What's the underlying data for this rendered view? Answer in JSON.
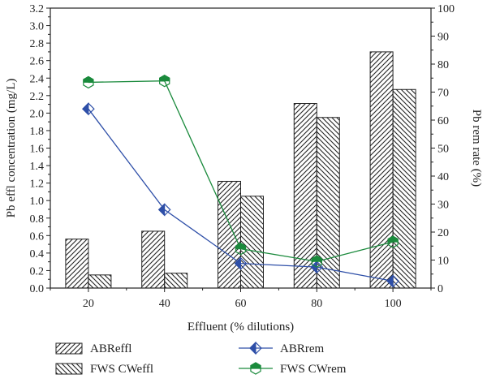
{
  "chart_data": {
    "type": "bar+line",
    "categories": [
      "20",
      "40",
      "60",
      "80",
      "100"
    ],
    "xlabel": "Effluent (% dilutions)",
    "ylabel_left": "Pb effl concentration (mg/L)",
    "ylabel_right": "Pb rem rate (%)",
    "ylim_left": [
      0,
      3.2
    ],
    "ylim_right": [
      0,
      100
    ],
    "yticks_left": [
      "0.0",
      "0.2",
      "0.4",
      "0.6",
      "0.8",
      "1.0",
      "1.2",
      "1.4",
      "1.6",
      "1.8",
      "2.0",
      "2.2",
      "2.4",
      "2.6",
      "2.8",
      "3.0",
      "3.2"
    ],
    "yticks_right": [
      "0",
      "10",
      "20",
      "30",
      "40",
      "50",
      "60",
      "70",
      "80",
      "90",
      "100"
    ],
    "grid": false,
    "legend_position": "bottom",
    "bar_series": [
      {
        "name": "ABReffl",
        "values": [
          0.56,
          0.65,
          1.22,
          2.11,
          2.7
        ],
        "pattern": "diag-left"
      },
      {
        "name": "FWS CWeffl",
        "values": [
          0.15,
          0.17,
          1.05,
          1.95,
          2.27
        ],
        "pattern": "diag-right"
      }
    ],
    "line_series": [
      {
        "name": "ABRrem",
        "values": [
          64.0,
          28.0,
          8.8,
          7.5,
          2.5
        ],
        "color": "#2e4fa8",
        "marker": "diamond-half"
      },
      {
        "name": "FWS CWrem",
        "values": [
          73.5,
          74.0,
          14.0,
          9.5,
          16.5
        ],
        "color": "#1a8a3c",
        "marker": "hexagon-half"
      }
    ]
  }
}
